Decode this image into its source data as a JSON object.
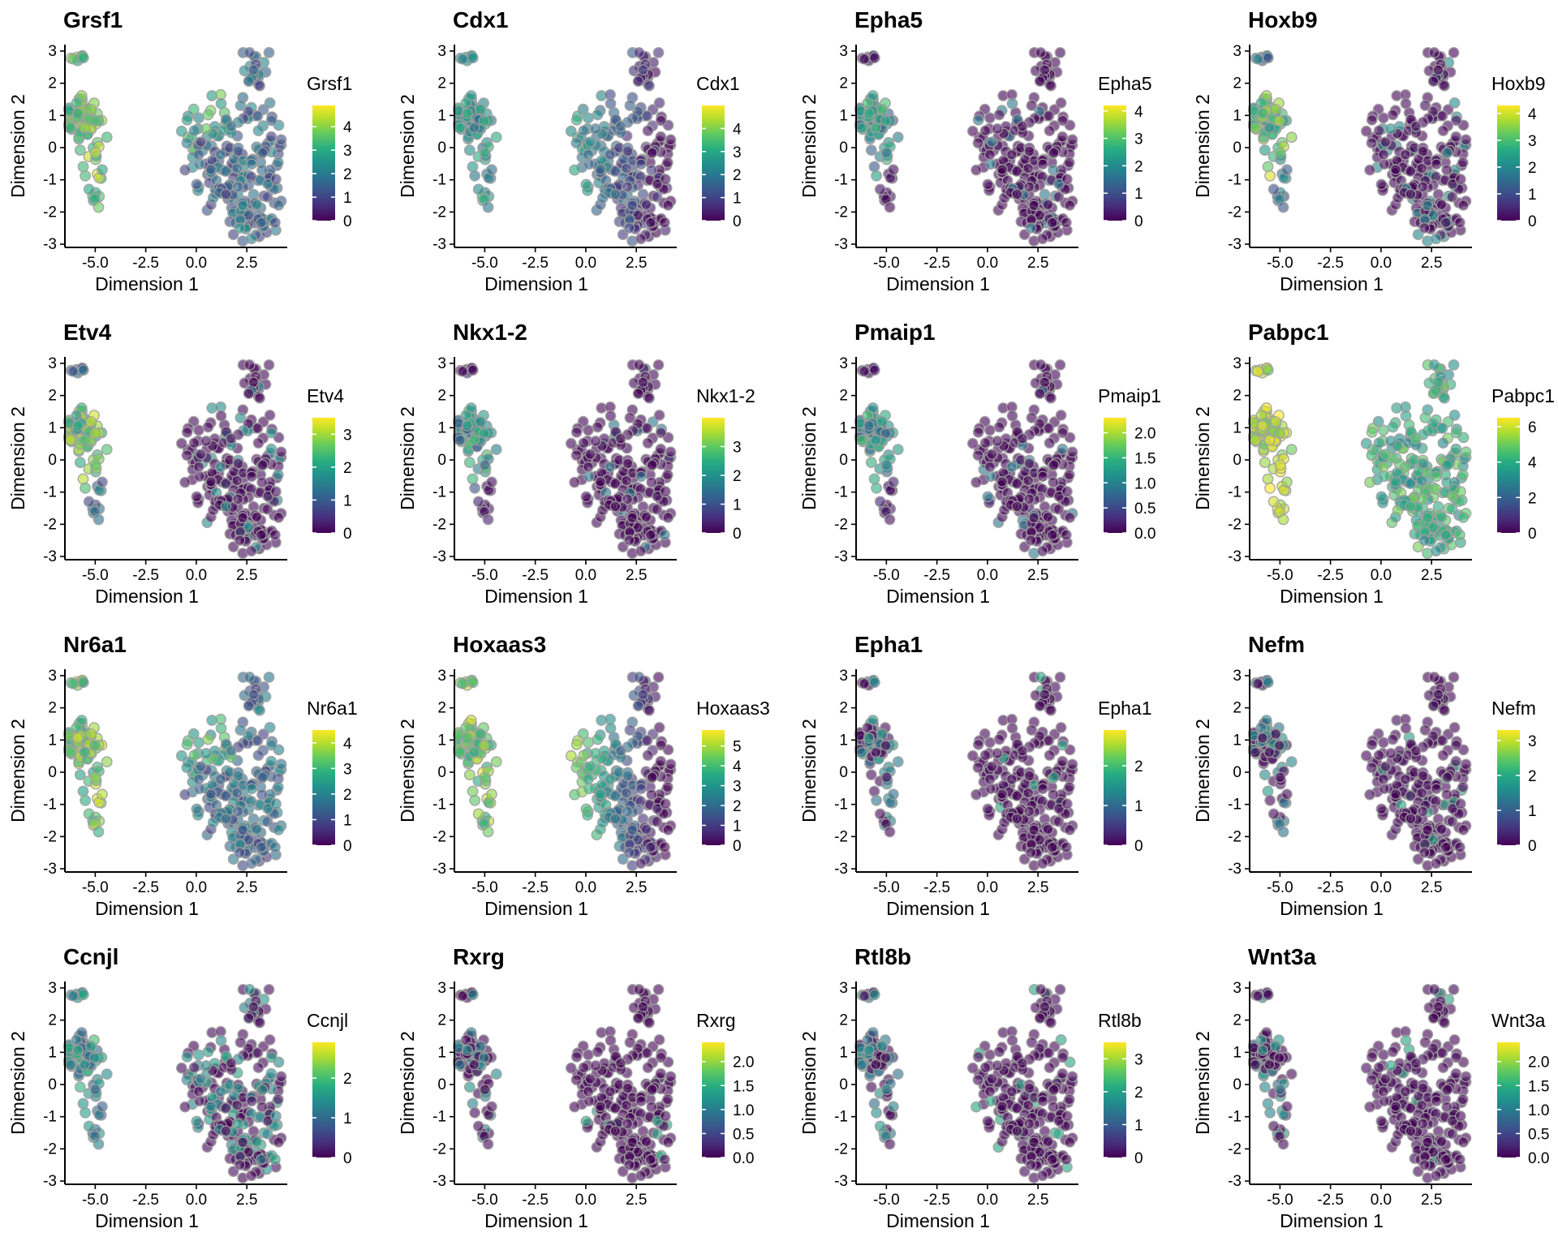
{
  "figure": {
    "panels": [
      {
        "gene": "Grsf1",
        "legend_title": "Grsf1",
        "max": 4.9,
        "legend_ticks": [
          "0",
          "1",
          "2",
          "3",
          "4"
        ],
        "legend_tick_values": [
          0,
          1,
          2,
          3,
          4
        ],
        "pattern": "broad"
      },
      {
        "gene": "Cdx1",
        "legend_title": "Cdx1",
        "max": 5.0,
        "legend_ticks": [
          "0",
          "1",
          "2",
          "3",
          "4"
        ],
        "legend_tick_values": [
          0,
          1,
          2,
          3,
          4
        ],
        "pattern": "gradient"
      },
      {
        "gene": "Epha5",
        "legend_title": "Epha5",
        "max": 4.2,
        "legend_ticks": [
          "0",
          "1",
          "2",
          "3",
          "4"
        ],
        "legend_tick_values": [
          0,
          1,
          2,
          3,
          4
        ],
        "pattern": "left_mid"
      },
      {
        "gene": "Hoxb9",
        "legend_title": "Hoxb9",
        "max": 4.3,
        "legend_ticks": [
          "0",
          "1",
          "2",
          "3",
          "4"
        ],
        "legend_tick_values": [
          0,
          1,
          2,
          3,
          4
        ],
        "pattern": "left_high"
      },
      {
        "gene": "Etv4",
        "legend_title": "Etv4",
        "max": 3.5,
        "legend_ticks": [
          "0",
          "1",
          "2",
          "3"
        ],
        "legend_tick_values": [
          0,
          1,
          2,
          3
        ],
        "pattern": "left_high"
      },
      {
        "gene": "Nkx1-2",
        "legend_title": "Nkx1-2",
        "max": 4.0,
        "legend_ticks": [
          "0",
          "1",
          "2",
          "3"
        ],
        "legend_tick_values": [
          0,
          1,
          2,
          3
        ],
        "pattern": "left_mid"
      },
      {
        "gene": "Pmaip1",
        "legend_title": "Pmaip1",
        "max": 2.3,
        "legend_ticks": [
          "0.0",
          "0.5",
          "1.0",
          "1.5",
          "2.0"
        ],
        "legend_tick_values": [
          0,
          0.5,
          1,
          1.5,
          2
        ],
        "pattern": "left_mid"
      },
      {
        "gene": "Pabpc1",
        "legend_title": "Pabpc1",
        "max": 6.5,
        "legend_ticks": [
          "0",
          "2",
          "4",
          "6"
        ],
        "legend_tick_values": [
          0,
          2,
          4,
          6
        ],
        "pattern": "broad_high"
      },
      {
        "gene": "Nr6a1",
        "legend_title": "Nr6a1",
        "max": 4.5,
        "legend_ticks": [
          "0",
          "1",
          "2",
          "3",
          "4"
        ],
        "legend_tick_values": [
          0,
          1,
          2,
          3,
          4
        ],
        "pattern": "broad"
      },
      {
        "gene": "Hoxaas3",
        "legend_title": "Hoxaas3",
        "max": 5.8,
        "legend_ticks": [
          "0",
          "1",
          "2",
          "3",
          "4",
          "5"
        ],
        "legend_tick_values": [
          0,
          1,
          2,
          3,
          4,
          5
        ],
        "pattern": "gradient_strong"
      },
      {
        "gene": "Epha1",
        "legend_title": "Epha1",
        "max": 2.9,
        "legend_ticks": [
          "0",
          "1",
          "2"
        ],
        "legend_tick_values": [
          0,
          1,
          2
        ],
        "pattern": "sparse"
      },
      {
        "gene": "Nefm",
        "legend_title": "Nefm",
        "max": 3.3,
        "legend_ticks": [
          "0",
          "1",
          "2",
          "3"
        ],
        "legend_tick_values": [
          0,
          1,
          2,
          3
        ],
        "pattern": "sparse"
      },
      {
        "gene": "Ccnjl",
        "legend_title": "Ccnjl",
        "max": 2.9,
        "legend_ticks": [
          "0",
          "1",
          "2"
        ],
        "legend_tick_values": [
          0,
          1,
          2
        ],
        "pattern": "left_mid_right"
      },
      {
        "gene": "Rxrg",
        "legend_title": "Rxrg",
        "max": 2.4,
        "legend_ticks": [
          "0.0",
          "0.5",
          "1.0",
          "1.5",
          "2.0"
        ],
        "legend_tick_values": [
          0,
          0.5,
          1,
          1.5,
          2
        ],
        "pattern": "very_sparse"
      },
      {
        "gene": "Rtl8b",
        "legend_title": "Rtl8b",
        "max": 3.5,
        "legend_ticks": [
          "0",
          "1",
          "2",
          "3"
        ],
        "legend_tick_values": [
          0,
          1,
          2,
          3
        ],
        "pattern": "sparse"
      },
      {
        "gene": "Wnt3a",
        "legend_title": "Wnt3a",
        "max": 2.4,
        "legend_ticks": [
          "0.0",
          "0.5",
          "1.0",
          "1.5",
          "2.0"
        ],
        "legend_tick_values": [
          0,
          0.5,
          1,
          1.5,
          2
        ],
        "pattern": "sparse"
      }
    ]
  },
  "chart_data": {
    "type": "scatter",
    "xlabel": "Dimension 1",
    "ylabel": "Dimension 2",
    "xlim": [
      -6.5,
      4.5
    ],
    "ylim": [
      -3.1,
      3.2
    ],
    "xticks": [
      -5.0,
      -2.5,
      0.0,
      2.5
    ],
    "xtick_labels": [
      "-5.0",
      "-2.5",
      "0.0",
      "2.5"
    ],
    "yticks": [
      -3,
      -2,
      -1,
      0,
      1,
      2,
      3
    ],
    "ytick_labels": [
      "-3",
      "-2",
      "-1",
      "0",
      "1",
      "2",
      "3"
    ],
    "color_scale": "viridis",
    "viridis_stops": [
      "#440154",
      "#472d7b",
      "#3b528b",
      "#2c728e",
      "#21918c",
      "#28ae80",
      "#5ec962",
      "#addc30",
      "#fde725"
    ],
    "point_outline": "#a0a0a0",
    "grid": false,
    "legend_placement": "right",
    "charts": [
      {
        "title": "Grsf1"
      },
      {
        "title": "Cdx1"
      },
      {
        "title": "Epha5"
      },
      {
        "title": "Hoxb9"
      },
      {
        "title": "Etv4"
      },
      {
        "title": "Nkx1-2"
      },
      {
        "title": "Pmaip1"
      },
      {
        "title": "Pabpc1"
      },
      {
        "title": "Nr6a1"
      },
      {
        "title": "Hoxaas3"
      },
      {
        "title": "Epha1"
      },
      {
        "title": "Nefm"
      },
      {
        "title": "Ccnjl"
      },
      {
        "title": "Rxrg"
      },
      {
        "title": "Rtl8b"
      },
      {
        "title": "Wnt3a"
      }
    ]
  }
}
